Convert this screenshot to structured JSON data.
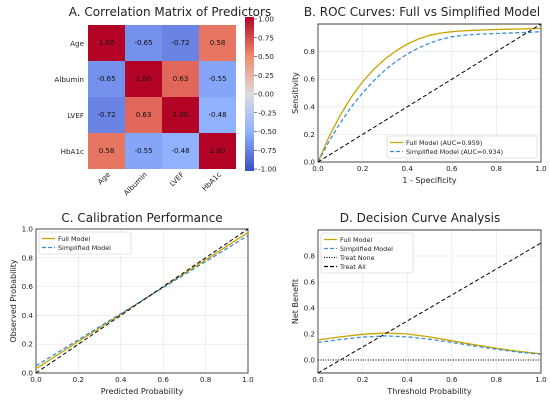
{
  "chart_data": [
    {
      "type": "heatmap",
      "title": "A. Correlation Matrix of Predictors",
      "rows": [
        "Age",
        "Albumin",
        "LVEF",
        "HbA1c"
      ],
      "cols": [
        "Age",
        "Albumin",
        "LVEF",
        "HbA1c"
      ],
      "values": [
        [
          1.0,
          -0.65,
          -0.72,
          0.58
        ],
        [
          -0.65,
          1.0,
          0.63,
          -0.55
        ],
        [
          -0.72,
          0.63,
          1.0,
          -0.48
        ],
        [
          0.58,
          -0.55,
          -0.48,
          1.0
        ]
      ],
      "cell_labels": [
        [
          "1.00",
          "-0.65",
          "-0.72",
          "0.58"
        ],
        [
          "-0.65",
          "1.00",
          "0.63",
          "-0.55"
        ],
        [
          "-0.72",
          "0.63",
          "1.00",
          "-0.48"
        ],
        [
          "0.58",
          "-0.55",
          "-0.48",
          "1.00"
        ]
      ],
      "colorbar": {
        "range": [
          -1.0,
          1.0
        ],
        "ticks": [
          "1.00",
          "0.75",
          "0.50",
          "0.25",
          "0.00",
          "-0.25",
          "-0.50",
          "-0.75",
          "-1.00"
        ],
        "colormap": "coolwarm"
      }
    },
    {
      "type": "line",
      "title": "B. ROC Curves: Full vs Simplified Model",
      "xlabel": "1 - Specificity",
      "ylabel": "Sensitivity",
      "xlim": [
        0,
        1
      ],
      "ylim": [
        0,
        1
      ],
      "xticks": [
        "0.0",
        "0.2",
        "0.4",
        "0.6",
        "0.8",
        "1.0"
      ],
      "yticks": [
        "0.0",
        "0.2",
        "0.4",
        "0.6",
        "0.8"
      ],
      "grid": true,
      "legend_position": "lower-right",
      "series": [
        {
          "name": "Full Model (AUC=0.959)",
          "color": "#c9a400",
          "style": "solid",
          "x": [
            0,
            0.05,
            0.1,
            0.15,
            0.2,
            0.25,
            0.3,
            0.35,
            0.4,
            0.45,
            0.5,
            0.55,
            0.6,
            0.65,
            0.7,
            0.75,
            0.8,
            0.85,
            0.9,
            0.95,
            1.0
          ],
          "y": [
            0,
            0.184,
            0.34,
            0.471,
            0.581,
            0.672,
            0.746,
            0.806,
            0.854,
            0.891,
            0.918,
            0.934,
            0.944,
            0.95,
            0.954,
            0.957,
            0.96,
            0.962,
            0.964,
            0.966,
            0.968
          ]
        },
        {
          "name": "Simplified Model (AUC=0.934)",
          "color": "#3a8fd8",
          "style": "dashed",
          "x": [
            0,
            0.05,
            0.1,
            0.15,
            0.2,
            0.25,
            0.3,
            0.35,
            0.4,
            0.45,
            0.5,
            0.55,
            0.6,
            0.65,
            0.7,
            0.75,
            0.8,
            0.85,
            0.9,
            0.95,
            1.0
          ],
          "y": [
            0,
            0.15,
            0.283,
            0.4,
            0.501,
            0.589,
            0.665,
            0.729,
            0.782,
            0.826,
            0.861,
            0.888,
            0.907,
            0.918,
            0.924,
            0.928,
            0.931,
            0.934,
            0.937,
            0.94,
            0.944
          ]
        },
        {
          "name": "",
          "color": "#000000",
          "style": "dashed",
          "x": [
            0,
            1
          ],
          "y": [
            0,
            1
          ]
        }
      ]
    },
    {
      "type": "line",
      "title": "C. Calibration Performance",
      "xlabel": "Predicted Probability",
      "ylabel": "Observed Probability",
      "xlim": [
        0,
        1
      ],
      "ylim": [
        0,
        1
      ],
      "xticks": [
        "0.0",
        "0.2",
        "0.4",
        "0.6",
        "0.8",
        "1.0"
      ],
      "yticks": [
        "0.0",
        "0.2",
        "0.4",
        "0.6",
        "0.8",
        "1.0"
      ],
      "grid": true,
      "legend_position": "upper-left",
      "series": [
        {
          "name": "Full Model",
          "color": "#c9a400",
          "style": "solid",
          "x": [
            0,
            1
          ],
          "y": [
            0.03,
            0.975
          ]
        },
        {
          "name": "Simplified Model",
          "color": "#3a8fd8",
          "style": "dashed",
          "x": [
            0,
            1
          ],
          "y": [
            0.05,
            0.955
          ]
        },
        {
          "name": "",
          "color": "#000000",
          "style": "dashed",
          "x": [
            0,
            1
          ],
          "y": [
            0.0,
            1.0
          ]
        }
      ]
    },
    {
      "type": "line",
      "title": "D. Decision Curve Analysis",
      "xlabel": "Threshold Probability",
      "ylabel": "Net Benefit",
      "xlim": [
        0,
        1
      ],
      "ylim": [
        -0.1,
        1.0
      ],
      "xticks": [
        "0.0",
        "0.2",
        "0.4",
        "0.6",
        "0.8",
        "1.0"
      ],
      "yticks": [
        "0.0",
        "0.2",
        "0.4",
        "0.6",
        "0.8"
      ],
      "grid": true,
      "legend_position": "upper-left",
      "series": [
        {
          "name": "Full Model",
          "color": "#c9a400",
          "style": "solid",
          "x": [
            0,
            0.1,
            0.2,
            0.3,
            0.4,
            0.5,
            0.6,
            0.7,
            0.8,
            0.9,
            1.0
          ],
          "y": [
            0.155,
            0.178,
            0.198,
            0.208,
            0.2,
            0.178,
            0.148,
            0.118,
            0.09,
            0.066,
            0.048
          ]
        },
        {
          "name": "Simplified Model",
          "color": "#3a8fd8",
          "style": "dashed",
          "x": [
            0,
            0.1,
            0.2,
            0.3,
            0.4,
            0.5,
            0.6,
            0.7,
            0.8,
            0.9,
            1.0
          ],
          "y": [
            0.135,
            0.158,
            0.176,
            0.185,
            0.178,
            0.16,
            0.135,
            0.108,
            0.083,
            0.06,
            0.045
          ]
        },
        {
          "name": "Treat None",
          "color": "#000000",
          "style": "dotted",
          "x": [
            0,
            1
          ],
          "y": [
            0,
            0
          ]
        },
        {
          "name": "Treat All",
          "color": "#000000",
          "style": "dashed",
          "x": [
            0,
            1
          ],
          "y": [
            -0.1,
            0.9
          ]
        }
      ]
    }
  ]
}
